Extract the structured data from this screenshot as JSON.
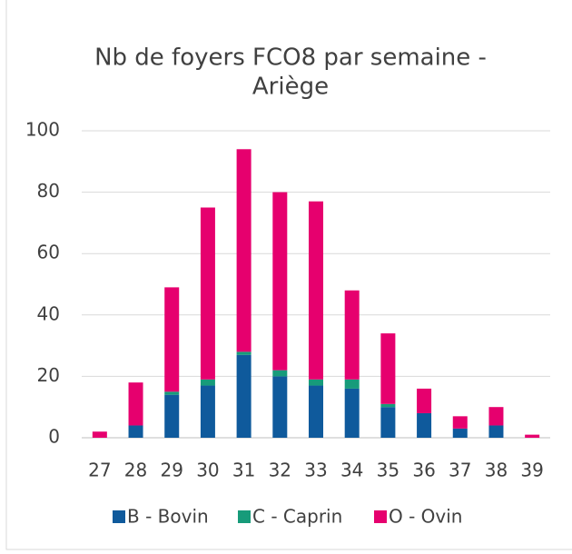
{
  "chart_data": {
    "type": "stacked_bar",
    "title": [
      "Nb de foyers FCO8 par semaine -",
      "Ariège"
    ],
    "categories": [
      "27",
      "28",
      "29",
      "30",
      "31",
      "32",
      "33",
      "34",
      "35",
      "36",
      "37",
      "38",
      "39"
    ],
    "series": [
      {
        "name": "B - Bovin",
        "color": "#0f5a9c",
        "values": [
          0,
          4,
          14,
          17,
          27,
          20,
          17,
          16,
          10,
          8,
          3,
          4,
          0
        ]
      },
      {
        "name": "C - Caprin",
        "color": "#179b7a",
        "values": [
          0,
          0,
          1,
          2,
          1,
          2,
          2,
          3,
          1,
          0,
          0,
          0,
          0
        ]
      },
      {
        "name": "O - Ovin",
        "color": "#e6006e",
        "values": [
          2,
          14,
          34,
          56,
          66,
          58,
          58,
          29,
          23,
          8,
          4,
          6,
          1
        ]
      }
    ],
    "ylim": [
      0,
      100
    ],
    "yticks": [
      0,
      20,
      40,
      60,
      80,
      100
    ],
    "grid": true,
    "legend": "bottom"
  }
}
